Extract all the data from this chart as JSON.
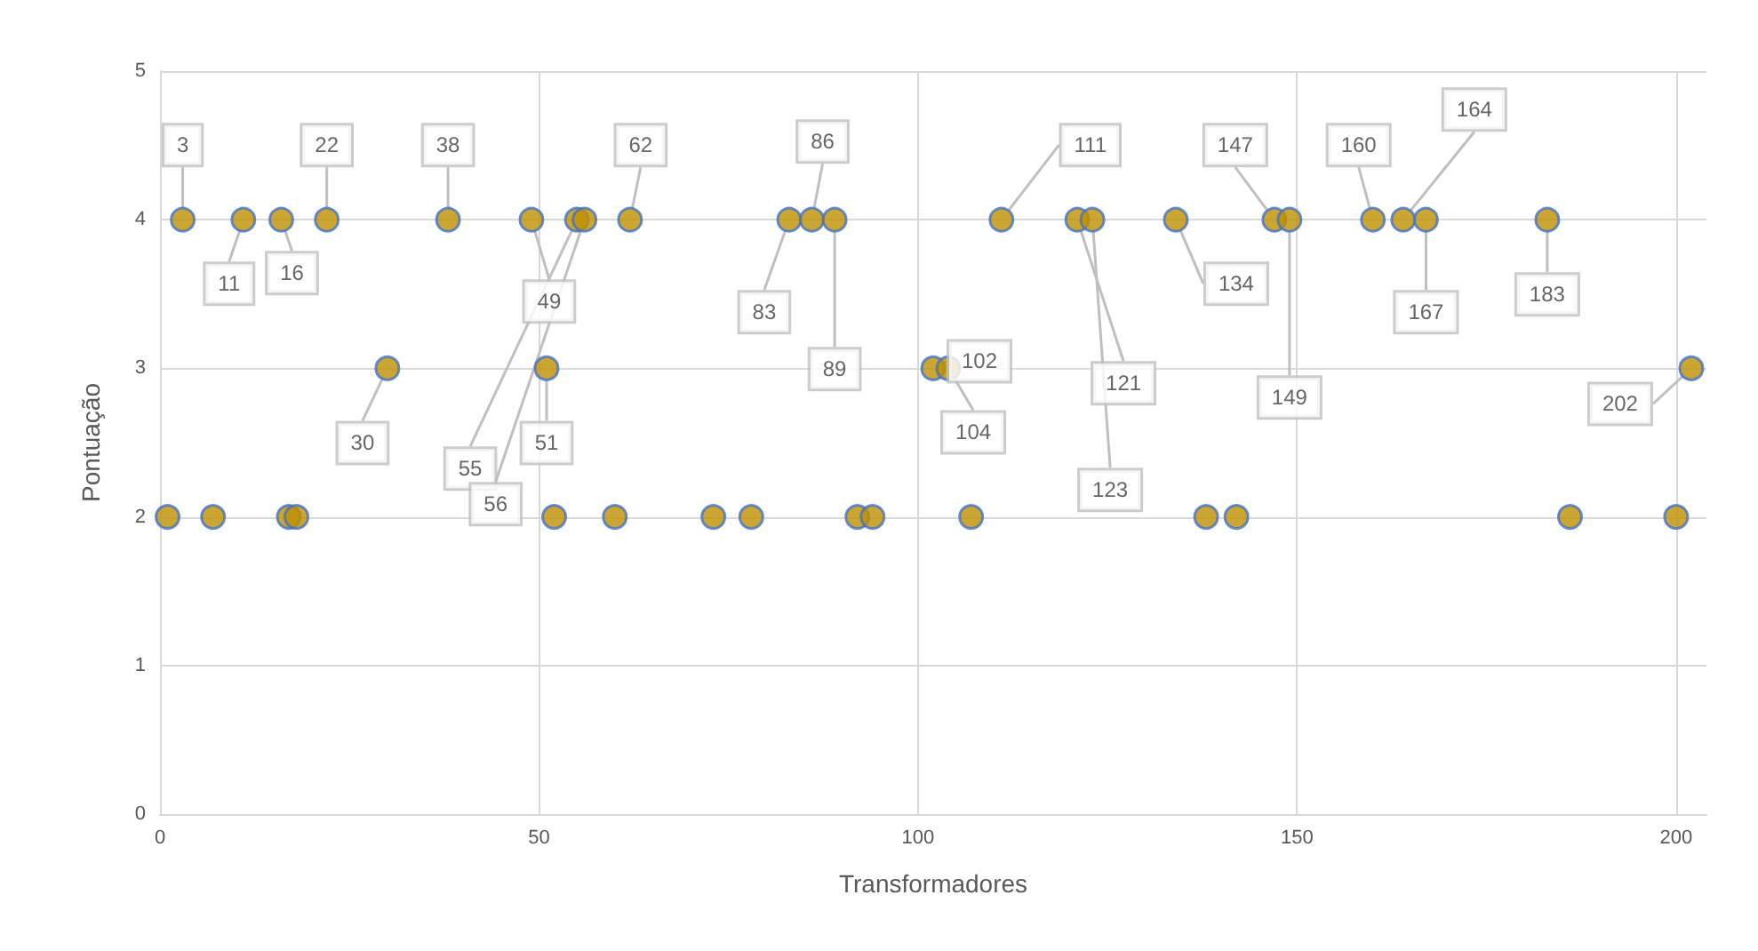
{
  "chart_data": {
    "type": "scatter",
    "xlabel": "Transformadores",
    "ylabel": "Pontuação",
    "x": [
      3,
      11,
      16,
      22,
      38,
      49,
      55,
      56,
      62,
      83,
      86,
      89,
      111,
      121,
      123,
      134,
      147,
      149,
      160,
      164,
      167,
      183,
      30,
      51,
      102,
      104,
      202,
      1,
      7,
      17,
      18,
      52,
      60,
      73,
      78,
      92,
      94,
      107,
      138,
      142,
      186,
      200
    ],
    "series": [
      {
        "color": "#bf9000",
        "values": [
          4,
          4,
          4,
          4,
          4,
          4,
          4,
          4,
          4,
          4,
          4,
          4,
          4,
          4,
          4,
          4,
          4,
          4,
          4,
          4,
          4,
          4,
          3,
          3,
          3,
          3,
          3,
          2,
          2,
          2,
          2,
          2,
          2,
          2,
          2,
          2,
          2,
          2,
          2,
          2,
          2,
          2
        ]
      }
    ],
    "xlim": [
      0,
      204
    ],
    "xticks": [
      0,
      50,
      100,
      150,
      200
    ],
    "ylim": [
      0,
      5
    ],
    "yticks": [
      0,
      1,
      2,
      3,
      4,
      5
    ],
    "grid": true,
    "marker": "circle",
    "annotations": [
      {
        "text": "3",
        "x": 3,
        "y": 4
      },
      {
        "text": "11",
        "x": 11,
        "y": 4
      },
      {
        "text": "16",
        "x": 16,
        "y": 4
      },
      {
        "text": "22",
        "x": 22,
        "y": 4
      },
      {
        "text": "38",
        "x": 38,
        "y": 4
      },
      {
        "text": "49",
        "x": 49,
        "y": 4
      },
      {
        "text": "55",
        "x": 55,
        "y": 4
      },
      {
        "text": "56",
        "x": 56,
        "y": 4
      },
      {
        "text": "62",
        "x": 62,
        "y": 4
      },
      {
        "text": "83",
        "x": 83,
        "y": 4
      },
      {
        "text": "86",
        "x": 86,
        "y": 4
      },
      {
        "text": "89",
        "x": 89,
        "y": 4
      },
      {
        "text": "111",
        "x": 111,
        "y": 4
      },
      {
        "text": "121",
        "x": 121,
        "y": 4
      },
      {
        "text": "123",
        "x": 123,
        "y": 4
      },
      {
        "text": "134",
        "x": 134,
        "y": 4
      },
      {
        "text": "147",
        "x": 147,
        "y": 4
      },
      {
        "text": "149",
        "x": 149,
        "y": 4
      },
      {
        "text": "160",
        "x": 160,
        "y": 4
      },
      {
        "text": "164",
        "x": 164,
        "y": 4
      },
      {
        "text": "167",
        "x": 167,
        "y": 4
      },
      {
        "text": "183",
        "x": 183,
        "y": 4
      },
      {
        "text": "30",
        "x": 30,
        "y": 3
      },
      {
        "text": "51",
        "x": 51,
        "y": 3
      },
      {
        "text": "102",
        "x": 102,
        "y": 3
      },
      {
        "text": "104",
        "x": 104,
        "y": 3
      },
      {
        "text": "202",
        "x": 202,
        "y": 3
      }
    ]
  }
}
